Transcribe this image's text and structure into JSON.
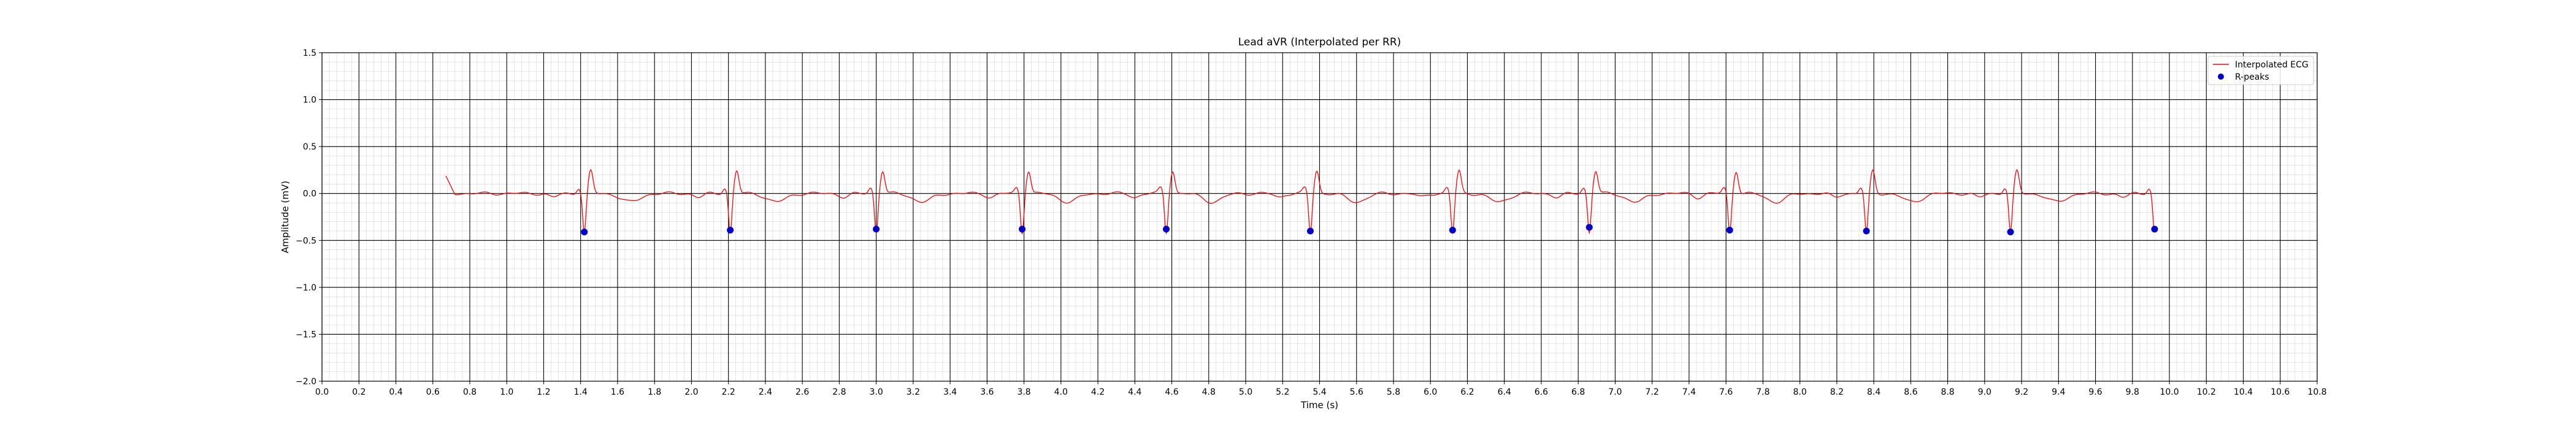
{
  "chart_data": {
    "type": "line",
    "title": "Lead aVR (Interpolated per RR)",
    "xlabel": "Time (s)",
    "ylabel": "Amplitude (mV)",
    "xlim": [
      0.0,
      10.8
    ],
    "ylim": [
      -2.0,
      1.5
    ],
    "x_ticks": [
      "0.0",
      "0.2",
      "0.4",
      "0.6",
      "0.8",
      "1.0",
      "1.2",
      "1.4",
      "1.6",
      "1.8",
      "2.0",
      "2.2",
      "2.4",
      "2.6",
      "2.8",
      "3.0",
      "3.2",
      "3.4",
      "3.6",
      "3.8",
      "4.0",
      "4.2",
      "4.4",
      "4.6",
      "4.8",
      "5.0",
      "5.2",
      "5.4",
      "5.6",
      "5.8",
      "6.0",
      "6.2",
      "6.4",
      "6.6",
      "6.8",
      "7.0",
      "7.2",
      "7.4",
      "7.6",
      "7.8",
      "8.0",
      "8.2",
      "8.4",
      "8.6",
      "8.8",
      "9.0",
      "9.2",
      "9.4",
      "9.6",
      "9.8",
      "10.0",
      "10.2",
      "10.4",
      "10.6",
      "10.8"
    ],
    "y_ticks": [
      "1.5",
      "1.0",
      "0.5",
      "0.0",
      "−0.5",
      "−1.0",
      "−1.5",
      "−2.0"
    ],
    "grid": {
      "major": true,
      "minor": true,
      "major_step": [
        0.2,
        0.5
      ],
      "minor_step": [
        0.04,
        0.1
      ]
    },
    "legend": {
      "placement": "top-right",
      "entries": [
        "Interpolated ECG",
        "R-peaks"
      ]
    },
    "series": [
      {
        "name": "Interpolated ECG",
        "color": "#ff0000",
        "x_start": 0.67,
        "x_end": 9.92,
        "beats": [
          1.42,
          2.21,
          3.0,
          3.79,
          4.57,
          5.35,
          6.12,
          6.86,
          7.62,
          8.36,
          9.14,
          9.92
        ]
      },
      {
        "name": "R-peaks",
        "color": "#0000cc",
        "points": [
          [
            1.42,
            -0.41
          ],
          [
            2.21,
            -0.39
          ],
          [
            3.0,
            -0.38
          ],
          [
            3.79,
            -0.38
          ],
          [
            4.57,
            -0.38
          ],
          [
            5.35,
            -0.4
          ],
          [
            6.12,
            -0.39
          ],
          [
            6.86,
            -0.36
          ],
          [
            7.62,
            -0.39
          ],
          [
            8.36,
            -0.4
          ],
          [
            9.14,
            -0.41
          ],
          [
            9.92,
            -0.38
          ]
        ]
      }
    ]
  }
}
